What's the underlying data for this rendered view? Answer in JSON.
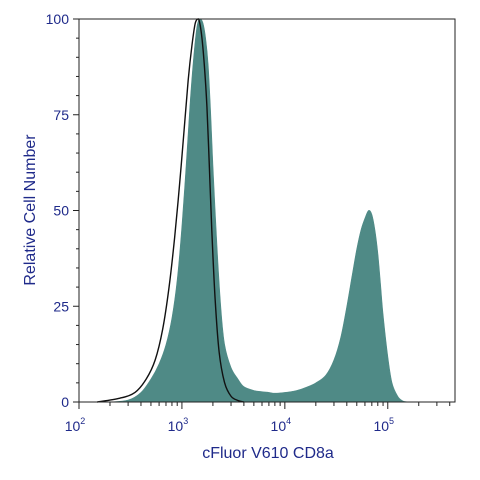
{
  "chart_data": {
    "type": "area",
    "title": "",
    "xlabel": "cFluor V610 CD8a",
    "ylabel": "Relative Cell Number",
    "x_scale": "log",
    "xlim": [
      100,
      450000
    ],
    "ylim": [
      0,
      100
    ],
    "x_ticks": [
      {
        "value": 100,
        "base": "10",
        "exp": "2"
      },
      {
        "value": 1000,
        "base": "10",
        "exp": "3"
      },
      {
        "value": 10000,
        "base": "10",
        "exp": "4"
      },
      {
        "value": 100000,
        "base": "10",
        "exp": "5"
      }
    ],
    "y_ticks": [
      {
        "value": 0,
        "label": "0"
      },
      {
        "value": 25,
        "label": "25"
      },
      {
        "value": 50,
        "label": "50"
      },
      {
        "value": 75,
        "label": "75"
      },
      {
        "value": 100,
        "label": "100"
      }
    ],
    "grid": false,
    "legend": "none",
    "series": [
      {
        "style": "filled",
        "color": "#4f8a86",
        "x": [
          200,
          300,
          400,
          500,
          600,
          700,
          800,
          900,
          1000,
          1100,
          1200,
          1300,
          1400,
          1500,
          1600,
          1700,
          1800,
          1900,
          2000,
          2200,
          2400,
          2600,
          3000,
          3500,
          4000,
          5000,
          6000,
          7000,
          8000,
          10000,
          13000,
          16000,
          20000,
          25000,
          30000,
          35000,
          40000,
          45000,
          50000,
          55000,
          60000,
          65000,
          70000,
          75000,
          80000,
          85000,
          90000,
          100000,
          110000,
          125000,
          140000,
          160000
        ],
        "y": [
          0,
          0.5,
          2.5,
          6,
          10,
          15,
          22,
          32,
          46,
          62,
          78,
          90,
          98,
          100,
          99,
          95,
          88,
          76,
          62,
          40,
          24,
          15,
          9,
          6,
          4,
          3,
          2.7,
          2.5,
          2.3,
          2.5,
          3,
          3.8,
          5,
          7,
          11,
          17,
          25,
          33,
          40,
          45,
          48,
          50,
          49,
          45,
          39,
          31,
          23,
          12,
          5,
          1.5,
          0.3,
          0
        ]
      },
      {
        "style": "outline",
        "color": "#111111",
        "x": [
          150,
          250,
          350,
          450,
          550,
          650,
          750,
          850,
          950,
          1050,
          1150,
          1250,
          1350,
          1450,
          1550,
          1650,
          1750,
          1850,
          1950,
          2100,
          2300,
          2600,
          3000,
          3500,
          4000
        ],
        "y": [
          0,
          1,
          2.5,
          6,
          11,
          19,
          30,
          43,
          57,
          71,
          84,
          93,
          99,
          100,
          96,
          88,
          77,
          61,
          45,
          27,
          13,
          5,
          1.5,
          0.4,
          0
        ]
      }
    ]
  }
}
